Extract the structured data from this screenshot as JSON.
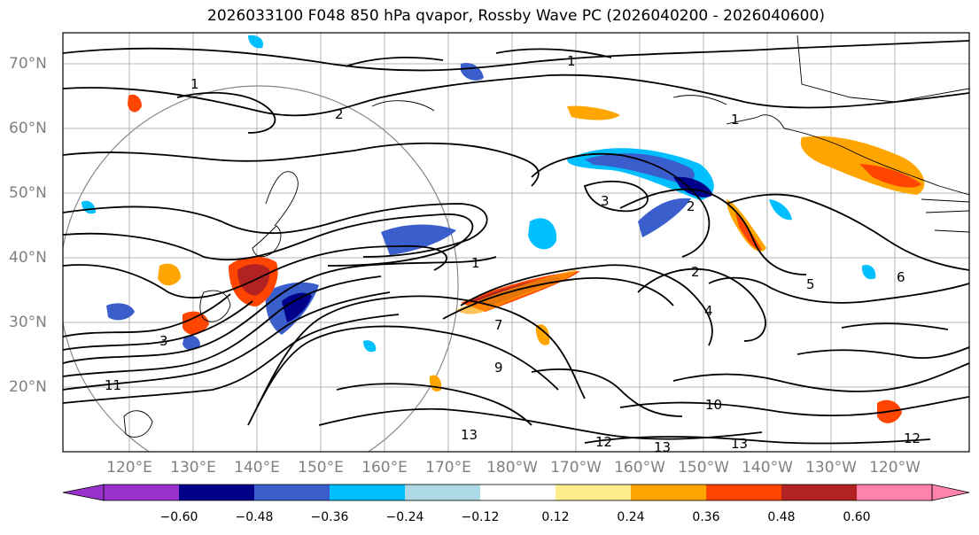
{
  "map": {
    "title": "2026033100 F048 850 hPa qvapor, Rossby Wave PC (2026040200 - 2026040600)",
    "latitude_labels": [
      "70°N",
      "60°N",
      "50°N",
      "40°N",
      "30°N",
      "20°N"
    ],
    "longitude_labels": [
      "120°E",
      "130°E",
      "140°E",
      "150°E",
      "160°E",
      "170°E",
      "180°W",
      "170°W",
      "160°W",
      "150°W",
      "140°W",
      "130°W",
      "120°W"
    ],
    "contour_labels": [
      "1",
      "1",
      "1",
      "1",
      "2",
      "2",
      "2",
      "3",
      "3",
      "4",
      "5",
      "6",
      "7",
      "9",
      "10",
      "11",
      "12",
      "12",
      "13",
      "13",
      "13"
    ],
    "colorbar": {
      "colors": [
        "#9932CC",
        "#00008B",
        "#3A5FCD",
        "#00BFFF",
        "#ADD8E6",
        "#FFFFFF",
        "#FFEC8B",
        "#FFA500",
        "#FF4500",
        "#B22222",
        "#FF82AB"
      ],
      "tick_labels": [
        "−0.60",
        "−0.48",
        "−0.36",
        "−0.24",
        "−0.12",
        "0.12",
        "0.24",
        "0.36",
        "0.48",
        "0.60"
      ]
    }
  }
}
